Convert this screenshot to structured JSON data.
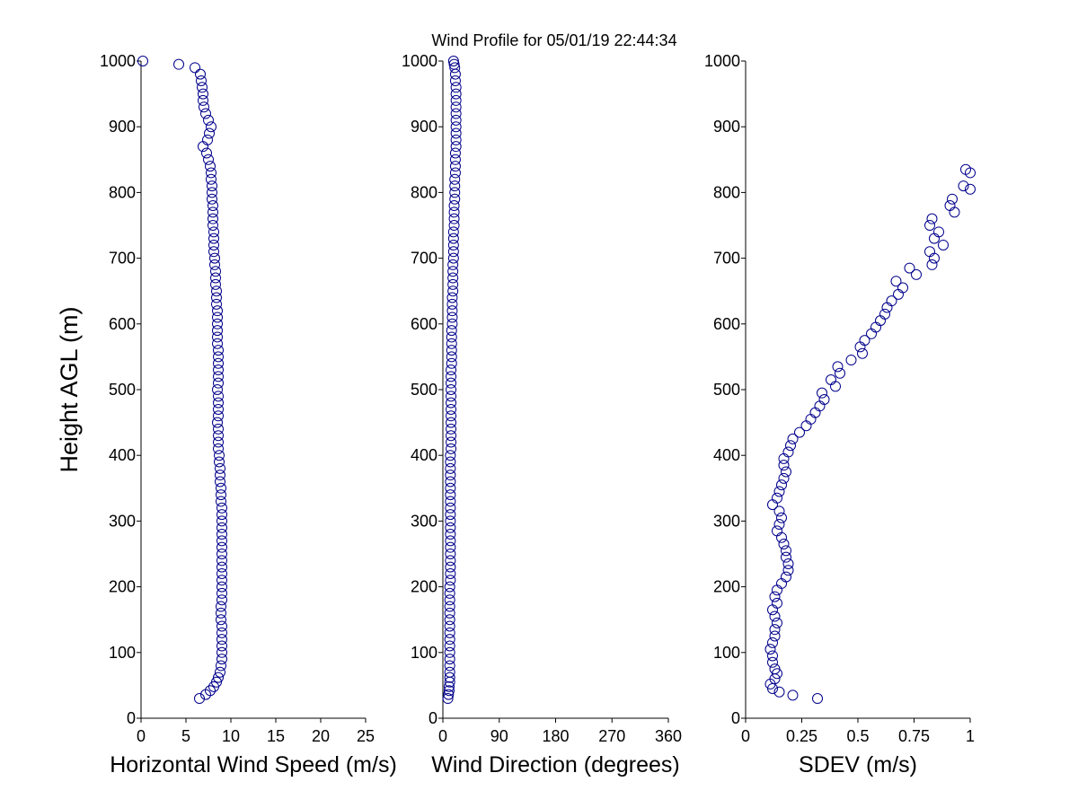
{
  "figure": {
    "title": "Wind Profile for  05/01/19 22:44:34",
    "ylabel": "Height AGL (m)"
  },
  "colors": {
    "marker": "#00008b",
    "axis": "#000000",
    "background": "#ffffff"
  },
  "chart_data": [
    {
      "type": "scatter",
      "xlabel": "Horizontal Wind Speed (m/s)",
      "ylabel": "Height AGL (m)",
      "xlim": [
        0,
        25
      ],
      "ylim": [
        0,
        1000
      ],
      "xticks": [
        "0",
        "5",
        "10",
        "15",
        "20",
        "25"
      ],
      "yticks": [
        "0",
        "100",
        "200",
        "300",
        "400",
        "500",
        "600",
        "700",
        "800",
        "900",
        "1000"
      ],
      "grid": false,
      "series": [
        {
          "y": [
            30,
            36,
            42,
            48,
            55,
            62,
            70,
            80,
            90,
            100,
            110,
            120,
            130,
            140,
            150,
            160,
            170,
            180,
            190,
            200,
            210,
            220,
            230,
            240,
            250,
            260,
            270,
            280,
            290,
            300,
            310,
            320,
            330,
            340,
            350,
            360,
            370,
            380,
            390,
            400,
            410,
            420,
            430,
            440,
            450,
            460,
            470,
            480,
            490,
            500,
            510,
            520,
            530,
            540,
            550,
            560,
            570,
            580,
            590,
            600,
            610,
            620,
            630,
            640,
            650,
            660,
            670,
            680,
            690,
            700,
            710,
            720,
            730,
            740,
            750,
            760,
            770,
            780,
            790,
            800,
            810,
            820,
            830,
            840,
            850,
            860,
            870,
            880,
            890,
            900,
            910,
            920,
            930,
            940,
            950,
            960,
            970,
            980,
            990,
            995,
            1000
          ],
          "x": [
            6.5,
            7.2,
            7.7,
            8.1,
            8.4,
            8.6,
            8.8,
            8.9,
            9.0,
            9.0,
            9.0,
            9.0,
            9.0,
            9.0,
            8.9,
            8.9,
            8.9,
            9.0,
            9.0,
            9.0,
            9.0,
            9.0,
            9.0,
            9.0,
            9.0,
            9.0,
            9.0,
            9.0,
            9.0,
            9.0,
            9.0,
            9.0,
            8.9,
            8.9,
            8.9,
            8.8,
            8.8,
            8.8,
            8.7,
            8.7,
            8.6,
            8.6,
            8.6,
            8.6,
            8.5,
            8.6,
            8.6,
            8.6,
            8.6,
            8.5,
            8.6,
            8.6,
            8.6,
            8.6,
            8.6,
            8.6,
            8.5,
            8.5,
            8.5,
            8.5,
            8.5,
            8.5,
            8.4,
            8.4,
            8.4,
            8.3,
            8.3,
            8.3,
            8.2,
            8.2,
            8.1,
            8.1,
            8.1,
            8.1,
            8.0,
            8.0,
            8.0,
            8.0,
            7.9,
            7.9,
            7.9,
            7.8,
            7.8,
            7.7,
            7.5,
            7.3,
            6.9,
            7.4,
            7.6,
            7.8,
            7.5,
            7.2,
            7.0,
            6.9,
            6.9,
            6.8,
            6.7,
            6.6,
            6.0,
            4.2,
            0.2
          ]
        }
      ]
    },
    {
      "type": "scatter",
      "xlabel": "Wind Direction (degrees)",
      "xlim": [
        0,
        360
      ],
      "ylim": [
        0,
        1000
      ],
      "xticks": [
        "0",
        "90",
        "180",
        "270",
        "360"
      ],
      "yticks": [
        "0",
        "100",
        "200",
        "300",
        "400",
        "500",
        "600",
        "700",
        "800",
        "900",
        "1000"
      ],
      "grid": false,
      "series": [
        {
          "y": [
            30,
            36,
            42,
            48,
            55,
            62,
            70,
            80,
            90,
            100,
            110,
            120,
            130,
            140,
            150,
            160,
            170,
            180,
            190,
            200,
            210,
            220,
            230,
            240,
            250,
            260,
            270,
            280,
            290,
            300,
            310,
            320,
            330,
            340,
            350,
            360,
            370,
            380,
            390,
            400,
            410,
            420,
            430,
            440,
            450,
            460,
            470,
            480,
            490,
            500,
            510,
            520,
            530,
            540,
            550,
            560,
            570,
            580,
            590,
            600,
            610,
            620,
            630,
            640,
            650,
            660,
            670,
            680,
            690,
            700,
            710,
            720,
            730,
            740,
            750,
            760,
            770,
            780,
            790,
            800,
            810,
            820,
            830,
            840,
            850,
            860,
            870,
            880,
            890,
            900,
            910,
            920,
            930,
            940,
            950,
            960,
            970,
            980,
            990,
            995,
            1000
          ],
          "x": [
            8,
            9,
            10,
            10,
            11,
            11,
            11,
            11,
            11,
            11,
            11,
            11,
            11,
            11,
            11,
            11,
            11,
            11,
            11,
            11,
            12,
            12,
            12,
            12,
            12,
            12,
            12,
            12,
            12,
            12,
            12,
            12,
            12,
            12,
            12,
            12,
            12,
            12,
            12,
            12,
            13,
            13,
            13,
            13,
            13,
            13,
            13,
            13,
            13,
            13,
            13,
            13,
            13,
            14,
            14,
            14,
            14,
            14,
            14,
            15,
            15,
            15,
            15,
            15,
            16,
            16,
            16,
            16,
            16,
            17,
            17,
            17,
            17,
            17,
            18,
            18,
            18,
            18,
            19,
            19,
            19,
            19,
            20,
            20,
            20,
            20,
            21,
            21,
            21,
            21,
            21,
            21,
            21,
            21,
            21,
            21,
            20,
            20,
            19,
            18,
            17
          ]
        }
      ]
    },
    {
      "type": "scatter",
      "xlabel": "SDEV  (m/s)",
      "xlim": [
        0,
        1
      ],
      "ylim": [
        0,
        1000
      ],
      "xticks": [
        "0",
        "0.25",
        "0.5",
        "0.75",
        "1"
      ],
      "yticks": [
        "0",
        "100",
        "200",
        "300",
        "400",
        "500",
        "600",
        "700",
        "800",
        "900",
        "1000"
      ],
      "grid": false,
      "series": [
        {
          "y": [
            30,
            35,
            40,
            45,
            52,
            60,
            68,
            75,
            85,
            95,
            105,
            115,
            125,
            135,
            145,
            155,
            165,
            175,
            185,
            195,
            205,
            215,
            225,
            235,
            245,
            255,
            265,
            275,
            285,
            295,
            305,
            315,
            325,
            335,
            345,
            355,
            365,
            375,
            385,
            395,
            405,
            415,
            425,
            435,
            445,
            455,
            465,
            475,
            485,
            495,
            505,
            515,
            525,
            535,
            545,
            555,
            565,
            575,
            585,
            595,
            605,
            615,
            625,
            635,
            645,
            655,
            665,
            675,
            685,
            690,
            700,
            710,
            720,
            730,
            740,
            750,
            760,
            770,
            780,
            790,
            805,
            810,
            830,
            835
          ],
          "x": [
            0.32,
            0.21,
            0.15,
            0.12,
            0.11,
            0.13,
            0.14,
            0.13,
            0.12,
            0.12,
            0.11,
            0.12,
            0.13,
            0.13,
            0.14,
            0.13,
            0.12,
            0.14,
            0.13,
            0.14,
            0.16,
            0.18,
            0.19,
            0.19,
            0.18,
            0.18,
            0.17,
            0.16,
            0.14,
            0.15,
            0.16,
            0.15,
            0.12,
            0.14,
            0.15,
            0.16,
            0.17,
            0.18,
            0.17,
            0.17,
            0.19,
            0.2,
            0.21,
            0.24,
            0.27,
            0.29,
            0.31,
            0.33,
            0.35,
            0.34,
            0.4,
            0.38,
            0.42,
            0.41,
            0.47,
            0.52,
            0.51,
            0.53,
            0.56,
            0.58,
            0.6,
            0.62,
            0.63,
            0.65,
            0.68,
            0.7,
            0.67,
            0.76,
            0.73,
            0.83,
            0.84,
            0.82,
            0.88,
            0.84,
            0.86,
            0.82,
            0.83,
            0.93,
            0.91,
            0.92,
            1.0,
            0.97,
            1.0,
            0.98
          ]
        }
      ]
    }
  ]
}
